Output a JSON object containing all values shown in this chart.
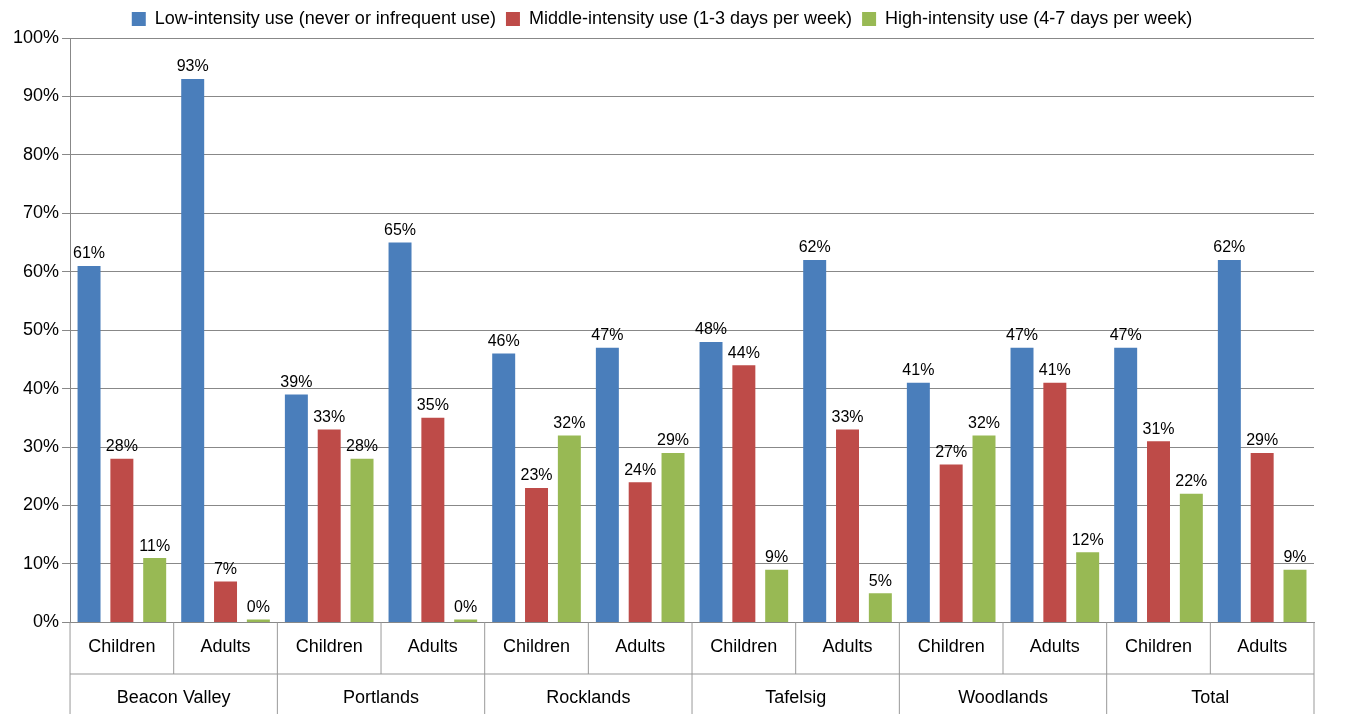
{
  "chart_data": {
    "type": "bar",
    "categories": [
      "Children",
      "Adults",
      "Children",
      "Adults",
      "Children",
      "Adults",
      "Children",
      "Adults",
      "Children",
      "Adults",
      "Children",
      "Adults"
    ],
    "annotations": [
      "Beacon Valley",
      "Portlands",
      "Rocklands",
      "Tafelsig",
      "Woodlands",
      "Total"
    ],
    "series": [
      {
        "name": "Low-intensity use (never or infrequent use)",
        "color": "#4a7ebb",
        "values": [
          61,
          93,
          39,
          65,
          46,
          47,
          48,
          62,
          41,
          47,
          47,
          62
        ],
        "value_labels": [
          "61%",
          "93%",
          "39%",
          "65%",
          "46%",
          "47%",
          "48%",
          "62%",
          "41%",
          "47%",
          "47%",
          "62%"
        ]
      },
      {
        "name": "Middle-intensity use (1-3 days per week)",
        "color": "#be4b48",
        "values": [
          28,
          7,
          33,
          35,
          23,
          24,
          44,
          33,
          27,
          41,
          31,
          29
        ],
        "value_labels": [
          "28%",
          "7%",
          "33%",
          "35%",
          "23%",
          "24%",
          "44%",
          "33%",
          "27%",
          "41%",
          "31%",
          "29%"
        ]
      },
      {
        "name": "High-intensity use (4-7 days per week)",
        "color": "#98b954",
        "values": [
          11,
          0,
          28,
          0,
          32,
          29,
          9,
          5,
          32,
          12,
          22,
          9
        ],
        "value_labels": [
          "11%",
          "0%",
          "28%",
          "0%",
          "32%",
          "29%",
          "9%",
          "5%",
          "32%",
          "12%",
          "22%",
          "9%"
        ]
      }
    ],
    "ylim": [
      0,
      100
    ],
    "yticks": [
      {
        "value": 0,
        "label": "0%"
      },
      {
        "value": 10,
        "label": "10%"
      },
      {
        "value": 20,
        "label": "20%"
      },
      {
        "value": 30,
        "label": "30%"
      },
      {
        "value": 40,
        "label": "40%"
      },
      {
        "value": 50,
        "label": "50%"
      },
      {
        "value": 60,
        "label": "60%"
      },
      {
        "value": 70,
        "label": "70%"
      },
      {
        "value": 80,
        "label": "80%"
      },
      {
        "value": 90,
        "label": "90%"
      },
      {
        "value": 100,
        "label": "100%"
      }
    ],
    "grid": "y",
    "legend": "top"
  }
}
